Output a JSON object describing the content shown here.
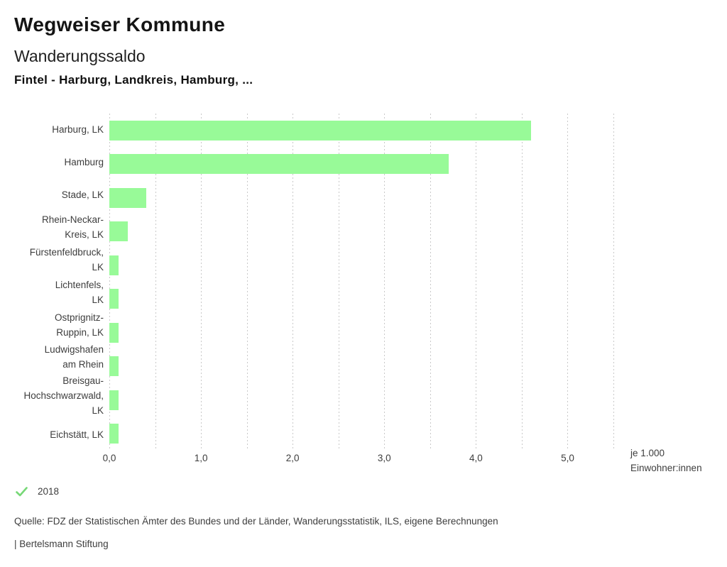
{
  "header": {
    "brand": "Wegweiser Kommune",
    "title": "Wanderungssaldo",
    "subtitle": "Fintel - Harburg, Landkreis, Hamburg, ..."
  },
  "chart_data": {
    "type": "bar",
    "orientation": "horizontal",
    "title": "Wanderungssaldo",
    "categories": [
      "Harburg, LK",
      "Hamburg",
      "Stade, LK",
      "Rhein-Neckar-Kreis, LK",
      "Fürstenfeldbruck, LK",
      "Lichtenfels, LK",
      "Ostprignitz-Ruppin, LK",
      "Ludwigshafen am Rhein",
      "Breisgau-Hochschwarzwald, LK",
      "Eichstätt, LK"
    ],
    "categories_wrapped": [
      [
        "Harburg, LK"
      ],
      [
        "Hamburg"
      ],
      [
        "Stade, LK"
      ],
      [
        "Rhein-Neckar-",
        "Kreis, LK"
      ],
      [
        "Fürstenfeldbruck,",
        "LK"
      ],
      [
        "Lichtenfels,",
        "LK"
      ],
      [
        "Ostprignitz-",
        "Ruppin, LK"
      ],
      [
        "Ludwigshafen",
        "am Rhein"
      ],
      [
        "Breisgau-",
        "Hochschwarzwald,",
        "LK"
      ],
      [
        "Eichstätt, LK"
      ]
    ],
    "series": [
      {
        "name": "2018",
        "values": [
          4.6,
          3.7,
          0.4,
          0.2,
          0.1,
          0.1,
          0.1,
          0.1,
          0.1,
          0.1
        ]
      }
    ],
    "xlim": [
      0,
      5.5
    ],
    "grid_step": 0.5,
    "grid": "vertical-dashed",
    "xticks": [
      0,
      1,
      2,
      3,
      4,
      5
    ],
    "xtick_labels": [
      "0,0",
      "1,0",
      "2,0",
      "3,0",
      "4,0",
      "5,0"
    ],
    "axis_note": [
      "je 1.000",
      "Einwohner:innen"
    ],
    "bar_color": "#98fa98",
    "gridline_color": "#c9c9c9",
    "legend_position": "bottom-left"
  },
  "legend": {
    "check_icon": "check-icon",
    "check_color": "#77d877",
    "label": "2018"
  },
  "footer": {
    "source": "Quelle: FDZ der Statistischen Ämter des Bundes und der Länder, Wanderungsstatistik, ILS, eigene Berechnungen",
    "attribution": "| Bertelsmann Stiftung"
  }
}
